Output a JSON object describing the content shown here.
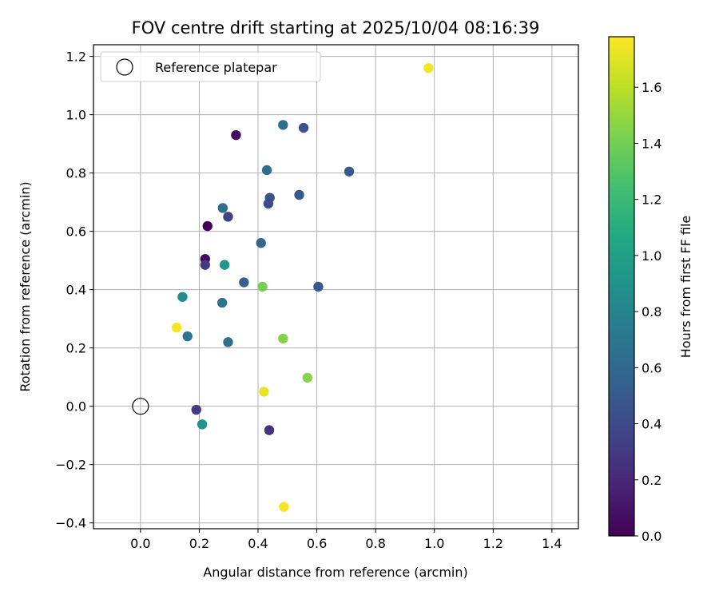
{
  "chart_data": {
    "type": "scatter",
    "title": "FOV centre drift starting at 2025/10/04 08:16:39",
    "xlabel": "Angular distance from reference (arcmin)",
    "ylabel": "Rotation from reference (arcmin)",
    "xlim": [
      -0.16,
      1.49
    ],
    "ylim": [
      -0.42,
      1.24
    ],
    "xticks": [
      0.0,
      0.2,
      0.4,
      0.6,
      0.8,
      1.0,
      1.2,
      1.4
    ],
    "yticks": [
      -0.4,
      -0.2,
      0.0,
      0.2,
      0.4,
      0.6,
      0.8,
      1.0,
      1.2
    ],
    "xtick_labels": [
      "0.0",
      "0.2",
      "0.4",
      "0.6",
      "0.8",
      "1.0",
      "1.2",
      "1.4"
    ],
    "ytick_labels": [
      "−0.4",
      "−0.2",
      "0.0",
      "0.2",
      "0.4",
      "0.6",
      "0.8",
      "1.0",
      "1.2"
    ],
    "grid": true,
    "legend": {
      "location": "top-left",
      "entries": [
        {
          "label": "Reference platepar",
          "marker": "open-circle",
          "x": 0.0,
          "y": 0.0
        }
      ]
    },
    "colorbar": {
      "label": "Hours from first FF file",
      "range": [
        0.0,
        1.78
      ],
      "ticks": [
        0.0,
        0.2,
        0.4,
        0.6,
        0.8,
        1.0,
        1.2,
        1.4,
        1.6
      ],
      "tick_labels": [
        "0.0",
        "0.2",
        "0.4",
        "0.6",
        "0.8",
        "1.0",
        "1.2",
        "1.4",
        "1.6"
      ],
      "colormap": "viridis"
    },
    "points": [
      {
        "x": 0.98,
        "y": 1.16,
        "hours": 1.75
      },
      {
        "x": 0.325,
        "y": 0.93,
        "hours": 0.05
      },
      {
        "x": 0.485,
        "y": 0.965,
        "hours": 0.65
      },
      {
        "x": 0.555,
        "y": 0.955,
        "hours": 0.45
      },
      {
        "x": 0.43,
        "y": 0.81,
        "hours": 0.65
      },
      {
        "x": 0.71,
        "y": 0.805,
        "hours": 0.5
      },
      {
        "x": 0.28,
        "y": 0.68,
        "hours": 0.65
      },
      {
        "x": 0.44,
        "y": 0.715,
        "hours": 0.45
      },
      {
        "x": 0.435,
        "y": 0.695,
        "hours": 0.4
      },
      {
        "x": 0.54,
        "y": 0.725,
        "hours": 0.5
      },
      {
        "x": 0.298,
        "y": 0.65,
        "hours": 0.35
      },
      {
        "x": 0.228,
        "y": 0.618,
        "hours": 0.02
      },
      {
        "x": 0.41,
        "y": 0.56,
        "hours": 0.6
      },
      {
        "x": 0.22,
        "y": 0.505,
        "hours": 0.03
      },
      {
        "x": 0.22,
        "y": 0.485,
        "hours": 0.3
      },
      {
        "x": 0.286,
        "y": 0.485,
        "hours": 0.95
      },
      {
        "x": 0.352,
        "y": 0.425,
        "hours": 0.55
      },
      {
        "x": 0.415,
        "y": 0.41,
        "hours": 1.4
      },
      {
        "x": 0.605,
        "y": 0.41,
        "hours": 0.5
      },
      {
        "x": 0.143,
        "y": 0.375,
        "hours": 0.85
      },
      {
        "x": 0.278,
        "y": 0.355,
        "hours": 0.7
      },
      {
        "x": 0.123,
        "y": 0.27,
        "hours": 1.75
      },
      {
        "x": 0.16,
        "y": 0.24,
        "hours": 0.7
      },
      {
        "x": 0.298,
        "y": 0.22,
        "hours": 0.65
      },
      {
        "x": 0.485,
        "y": 0.232,
        "hours": 1.45
      },
      {
        "x": 0.568,
        "y": 0.098,
        "hours": 1.45
      },
      {
        "x": 0.42,
        "y": 0.05,
        "hours": 1.72
      },
      {
        "x": 0.19,
        "y": -0.012,
        "hours": 0.3
      },
      {
        "x": 0.21,
        "y": -0.062,
        "hours": 0.9
      },
      {
        "x": 0.438,
        "y": -0.082,
        "hours": 0.25
      },
      {
        "x": 0.488,
        "y": -0.345,
        "hours": 1.75
      }
    ]
  }
}
